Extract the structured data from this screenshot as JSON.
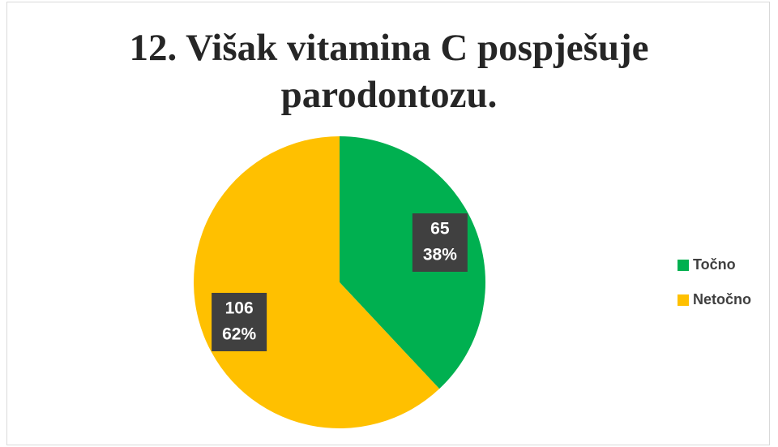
{
  "chart_data": {
    "type": "pie",
    "title": "12. Višak vitamina C pospješuje parodontozu.",
    "categories": [
      "Točno",
      "Netočno"
    ],
    "values": [
      65,
      106
    ],
    "percent_labels": [
      "38%",
      "62%"
    ],
    "colors": [
      "#00b050",
      "#ffc000"
    ],
    "legend": "right"
  }
}
